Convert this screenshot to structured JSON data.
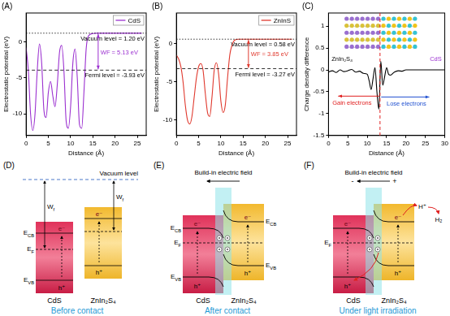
{
  "chart_data": [
    {
      "type": "line",
      "panel": "(A)",
      "x_label": "Distance (Å)",
      "y_label": "Electrostatic potential (eV)",
      "x": [
        0,
        0.5,
        1,
        1.5,
        2,
        2.5,
        3,
        3.5,
        4,
        4.5,
        5,
        5.5,
        6,
        6.5,
        7,
        7.5,
        8,
        8.5,
        9,
        9.5,
        10,
        10.5,
        11,
        11.5,
        12,
        12.5,
        13,
        13.5,
        14,
        15,
        16,
        18,
        20,
        22,
        24,
        25,
        26
      ],
      "series": [
        {
          "name": "CdS",
          "color": "#9b30d0",
          "values": [
            -0.8,
            -4,
            -10,
            -12.3,
            -10,
            -4,
            -0.3,
            -3,
            -9.5,
            -10.5,
            -7,
            -5.5,
            -7.5,
            -9,
            -6,
            -1.5,
            -0.5,
            -4,
            -11,
            -12,
            -9,
            -3,
            -1,
            -5,
            -11.5,
            -12,
            -7,
            -1,
            0.8,
            1.15,
            1.2,
            1.2,
            1.2,
            1.2,
            1.2,
            1.2,
            1.2
          ]
        }
      ],
      "xlim": [
        0,
        27
      ],
      "xticks": [
        0,
        5,
        10,
        15,
        20,
        25
      ],
      "ylim": [
        -13,
        4
      ],
      "yticks": [
        -10,
        -5,
        0
      ],
      "grid": false,
      "legend": "upper right",
      "reference_lines": [
        {
          "value": 1.2,
          "label": "Vacuum level = 1.20 eV",
          "line_style": "dotted"
        },
        {
          "value": -3.93,
          "label": "Fermi level = -3.93 eV",
          "line_style": "dashed"
        }
      ],
      "work_function": {
        "value": 5.13,
        "label": "WF = 5.13 eV"
      }
    },
    {
      "type": "line",
      "panel": "(B)",
      "x_label": "Distance (Å)",
      "y_label": "Electrostatic potential (eV)",
      "x": [
        0,
        0.5,
        1,
        1.5,
        2,
        2.5,
        3,
        3.5,
        4,
        4.5,
        5,
        5.5,
        6,
        6.5,
        7,
        7.5,
        8,
        8.5,
        9,
        9.5,
        10,
        10.5,
        11,
        11.5,
        12,
        12.5,
        13,
        13.5,
        14,
        15,
        16,
        18,
        20,
        22,
        24,
        25,
        26
      ],
      "series": [
        {
          "name": "ZnInS",
          "color": "#e03a2f",
          "values": [
            -1.5,
            -2,
            -3,
            -5,
            -8,
            -10,
            -10.5,
            -9.5,
            -7,
            -4.5,
            -3,
            -2.6,
            -3.5,
            -6.5,
            -9,
            -9.5,
            -7,
            -3.5,
            -2.5,
            -4,
            -7.5,
            -9,
            -8,
            -4.5,
            -1.5,
            -0.2,
            0.4,
            0.55,
            0.58,
            0.58,
            0.58,
            0.58,
            0.58,
            0.58,
            0.58,
            0.58,
            0.58
          ]
        }
      ],
      "xlim": [
        0,
        27
      ],
      "xticks": [
        0,
        5,
        10,
        15,
        20,
        25
      ],
      "ylim": [
        -12,
        4
      ],
      "yticks": [
        -10,
        -5,
        0
      ],
      "grid": false,
      "legend": "upper right",
      "reference_lines": [
        {
          "value": 0.58,
          "label": "Vacuum level = 0.58 eV",
          "line_style": "dotted"
        },
        {
          "value": -3.27,
          "label": "Fermi level = -3.27 eV",
          "line_style": "dashed"
        }
      ],
      "work_function": {
        "value": 3.85,
        "label": "WF = 3.85 eV"
      }
    },
    {
      "type": "line",
      "panel": "(C)",
      "x_label": "Distance (Å)",
      "y_label": "Charge density difference",
      "x": [
        0,
        1,
        2,
        3,
        4,
        5,
        6,
        7,
        8,
        9,
        10,
        10.5,
        11,
        11.5,
        12,
        12.5,
        13,
        13.5,
        14,
        14.5,
        15,
        15.5,
        16,
        17,
        18,
        19,
        20,
        22,
        24,
        26,
        28,
        30
      ],
      "values": [
        -0.05,
        -0.02,
        -0.06,
        0,
        -0.04,
        -0.02,
        0.01,
        -0.05,
        -0.03,
        -0.08,
        -0.1,
        -0.25,
        -0.45,
        -0.2,
        0.05,
        -0.5,
        -0.9,
        0.2,
        -0.35,
        -0.15,
        0.05,
        -0.1,
        -0.12,
        -0.05,
        -0.02,
        -0.03,
        0,
        0,
        0,
        0,
        0,
        0
      ],
      "color": "#000000",
      "xlim": [
        0,
        30
      ],
      "xticks": [
        0,
        5,
        10,
        15,
        20,
        25,
        30
      ],
      "ylim": [
        -1.5,
        1.3
      ],
      "yticks": [
        -1.5,
        -1,
        -0.5,
        0,
        0.5,
        1
      ],
      "grid": false,
      "interface": {
        "value": 13.3,
        "color": "#e02020",
        "line_style": "dashed"
      },
      "annotations": {
        "left_material": "ZnIn₂S₄",
        "right_material": "CdS",
        "gain": "Gain electrons",
        "lose": "Lose electrons"
      }
    }
  ],
  "diagrams": [
    {
      "panel": "(D)",
      "caption": "Before contact",
      "vacuum_label": "Vacuum level",
      "work_function": {
        "base": "W",
        "sub": "f"
      },
      "materials": [
        "CdS",
        "ZnIn₂S₄"
      ],
      "band_labels_left": [
        {
          "base": "E",
          "sub": "CB"
        },
        {
          "base": "E",
          "sub": "F"
        },
        {
          "base": "E",
          "sub": "VB"
        }
      ],
      "electron": "e⁻",
      "hole": "h⁺"
    },
    {
      "panel": "(E)",
      "caption": "After contact",
      "field_label": "Build-in electric field",
      "materials": [
        "CdS",
        "ZnIn₂S₄"
      ],
      "band_labels_left": [
        {
          "base": "E",
          "sub": "CB"
        },
        {
          "base": "E",
          "sub": "F"
        },
        {
          "base": "E",
          "sub": "VB"
        }
      ],
      "band_labels_right": [
        {
          "base": "E",
          "sub": "CB"
        },
        {
          "base": "E",
          "sub": "VB"
        }
      ],
      "electron": "e⁻",
      "hole": "h⁺"
    },
    {
      "panel": "(F)",
      "caption": "Under light irradiation",
      "field_label": "Build-in electric field",
      "polarity": [
        "-",
        "+"
      ],
      "materials": [
        "CdS",
        "ZnIn₂S₄"
      ],
      "band_labels_left": [
        {
          "base": "E",
          "sub": "F"
        }
      ],
      "electron": "e⁻",
      "hole": "h⁺",
      "reaction": [
        "H⁺",
        "H₂"
      ]
    }
  ]
}
